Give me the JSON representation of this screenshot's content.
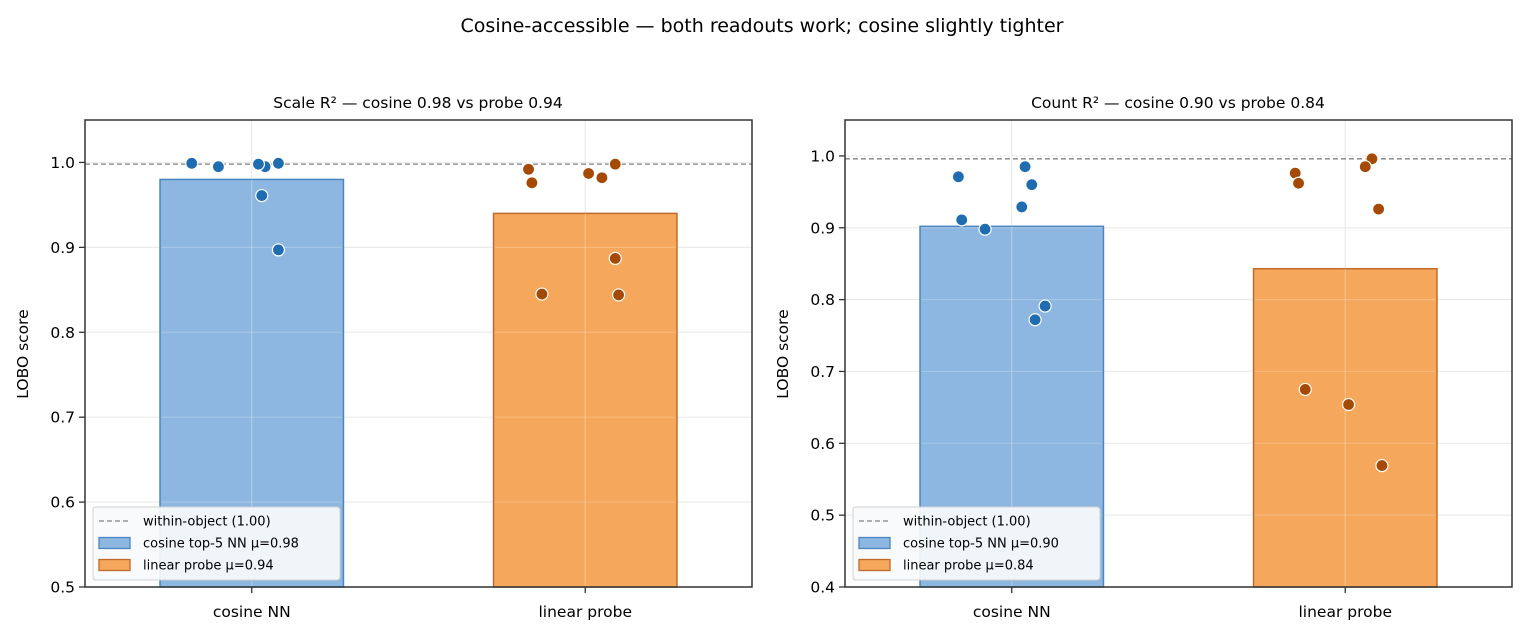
{
  "chart_data": {
    "suptitle": "Cosine-accessible — both readouts work; cosine slightly tighter",
    "colors": {
      "cosine_fill": "#8db7e0",
      "cosine_edge": "#4a86c0",
      "probe_fill": "#f5a85c",
      "probe_edge": "#c06a2c",
      "cosine_dot": "#1f6cb0",
      "probe_dot": "#a44a05",
      "ref_line": "#808080",
      "grid": "#ebebeb"
    },
    "panels": [
      {
        "type": "bar",
        "title": "Scale R² — cosine 0.98 vs probe 0.94",
        "ylabel": "LOBO score",
        "ylim": [
          0.5,
          1.05
        ],
        "yticks": [
          0.5,
          0.6,
          0.7,
          0.8,
          0.9,
          1.0
        ],
        "ytick_labels": [
          "0.5",
          "0.6",
          "0.7",
          "0.8",
          "0.9",
          "1.0"
        ],
        "categories": [
          "cosine NN",
          "linear probe"
        ],
        "values": [
          0.98,
          0.94
        ],
        "reference_line": 0.998,
        "points": [
          [
            {
              "jitter": -0.18,
              "y": 0.999
            },
            {
              "jitter": -0.1,
              "y": 0.995
            },
            {
              "jitter": 0.04,
              "y": 0.995
            },
            {
              "jitter": 0.02,
              "y": 0.998
            },
            {
              "jitter": 0.08,
              "y": 0.999
            },
            {
              "jitter": 0.03,
              "y": 0.961
            },
            {
              "jitter": 0.08,
              "y": 0.897
            }
          ],
          [
            {
              "jitter": -0.17,
              "y": 0.992
            },
            {
              "jitter": -0.16,
              "y": 0.976
            },
            {
              "jitter": 0.01,
              "y": 0.987
            },
            {
              "jitter": 0.05,
              "y": 0.982
            },
            {
              "jitter": 0.09,
              "y": 0.998
            },
            {
              "jitter": 0.09,
              "y": 0.887
            },
            {
              "jitter": -0.13,
              "y": 0.845
            },
            {
              "jitter": 0.1,
              "y": 0.844
            }
          ]
        ],
        "legend": {
          "location": "lower-left",
          "entries": [
            "within-object (1.00)",
            "cosine top-5 NN  μ=0.98",
            "linear probe  μ=0.94"
          ]
        }
      },
      {
        "type": "bar",
        "title": "Count R² — cosine 0.90 vs probe 0.84",
        "ylabel": "LOBO score",
        "ylim": [
          0.4,
          1.05
        ],
        "yticks": [
          0.4,
          0.5,
          0.6,
          0.7,
          0.8,
          0.9,
          1.0
        ],
        "ytick_labels": [
          "0.4",
          "0.5",
          "0.6",
          "0.7",
          "0.8",
          "0.9",
          "1.0"
        ],
        "categories": [
          "cosine NN",
          "linear probe"
        ],
        "values": [
          0.902,
          0.843
        ],
        "reference_line": 0.996,
        "points": [
          [
            {
              "jitter": -0.16,
              "y": 0.971
            },
            {
              "jitter": 0.04,
              "y": 0.985
            },
            {
              "jitter": 0.06,
              "y": 0.96
            },
            {
              "jitter": 0.03,
              "y": 0.929
            },
            {
              "jitter": -0.15,
              "y": 0.911
            },
            {
              "jitter": -0.08,
              "y": 0.898
            },
            {
              "jitter": 0.1,
              "y": 0.791
            },
            {
              "jitter": 0.07,
              "y": 0.772
            }
          ],
          [
            {
              "jitter": -0.15,
              "y": 0.976
            },
            {
              "jitter": -0.14,
              "y": 0.962
            },
            {
              "jitter": 0.08,
              "y": 0.996
            },
            {
              "jitter": 0.06,
              "y": 0.985
            },
            {
              "jitter": 0.1,
              "y": 0.926
            },
            {
              "jitter": -0.12,
              "y": 0.675
            },
            {
              "jitter": 0.01,
              "y": 0.654
            },
            {
              "jitter": 0.11,
              "y": 0.569
            }
          ]
        ],
        "legend": {
          "location": "lower-left",
          "entries": [
            "within-object (1.00)",
            "cosine top-5 NN  μ=0.90",
            "linear probe  μ=0.84"
          ]
        }
      }
    ]
  }
}
